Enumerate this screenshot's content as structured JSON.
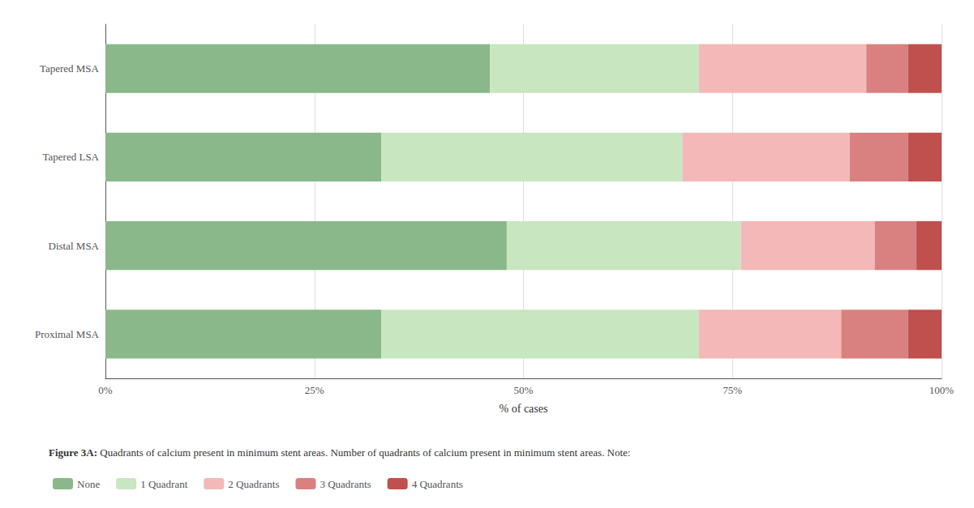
{
  "chart_data": {
    "type": "bar",
    "orientation": "horizontal",
    "stacked": true,
    "title": "Figure 3A:",
    "subtitle": "Quadrants of calcium present in minimum stent areas. Number of quadrants of calcium present in minimum stent areas. Note:",
    "xlabel": "% of cases",
    "categories": [
      "Proximal MSA",
      "Distal MSA",
      "Tapered LSA",
      "Tapered MSA"
    ],
    "series": [
      {
        "name": "None",
        "color": "#8ab88a",
        "values": [
          33,
          48,
          33,
          46
        ]
      },
      {
        "name": "1 Quadrant",
        "color": "#c8e6c0",
        "values": [
          38,
          28,
          36,
          25
        ]
      },
      {
        "name": "2 Quadrants",
        "color": "#f4b8b8",
        "values": [
          17,
          16,
          20,
          20
        ]
      },
      {
        "name": "3 Quadrants",
        "color": "#d98080",
        "values": [
          8,
          5,
          7,
          5
        ]
      },
      {
        "name": "4 Quadrants",
        "color": "#c0504d",
        "values": [
          4,
          3,
          4,
          4
        ]
      }
    ],
    "xlim": [
      0,
      100
    ],
    "xticks": [
      {
        "value": 0,
        "label": "0%"
      },
      {
        "value": 25,
        "label": "25%"
      },
      {
        "value": 50,
        "label": "50%"
      },
      {
        "value": 75,
        "label": "75%"
      },
      {
        "value": 100,
        "label": "100%"
      }
    ],
    "grid": true,
    "legend": "bottom"
  }
}
